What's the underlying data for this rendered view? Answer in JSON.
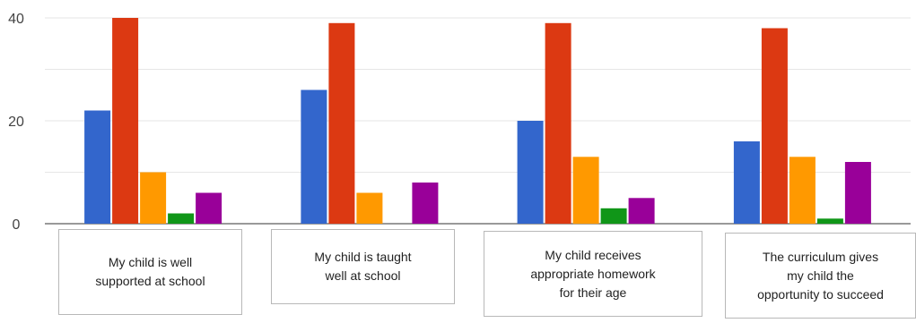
{
  "chart_data": {
    "type": "bar",
    "categories": [
      "My child is well supported at school",
      "My child is taught well at school",
      "My child receives appropriate homework for their age",
      "The curriculum gives my child the opportunity to succeed"
    ],
    "category_label_lines": [
      [
        "My child is well",
        "supported at school"
      ],
      [
        "My child is taught",
        "well at school"
      ],
      [
        "My child receives",
        "appropriate homework",
        "for their age"
      ],
      [
        "The curriculum gives",
        "my child the",
        "opportunity to succeed"
      ]
    ],
    "series": [
      {
        "color": "#3366cc",
        "values": [
          22,
          26,
          20,
          16
        ]
      },
      {
        "color": "#dc3912",
        "values": [
          40,
          39,
          39,
          38
        ]
      },
      {
        "color": "#ff9900",
        "values": [
          10,
          6,
          13,
          13
        ]
      },
      {
        "color": "#109618",
        "values": [
          2,
          0,
          3,
          1
        ]
      },
      {
        "color": "#990099",
        "values": [
          6,
          8,
          5,
          12
        ]
      }
    ],
    "yticks": [
      "0",
      "20",
      "40"
    ],
    "ylim": [
      0,
      40
    ],
    "grid": true,
    "title": "",
    "xlabel": "",
    "ylabel": ""
  }
}
